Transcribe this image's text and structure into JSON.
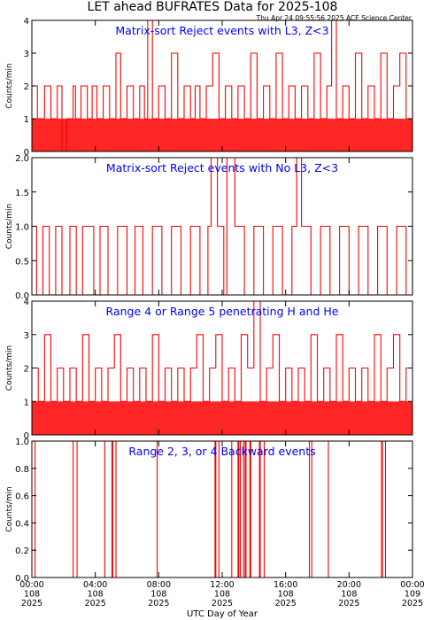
{
  "figure": {
    "title": "LET ahead BUFRATES Data for 2025-108",
    "timestamp": "Thu Apr 24 09:55:56 2025 ACE Science Center",
    "xlabel": "UTC Day of Year",
    "ylabel": "Counts/min",
    "trace_color": "#ff0000",
    "label_color": "#0000ff",
    "x_ticks": [
      {
        "hour": 0,
        "time": "00:00",
        "doy": "108",
        "year": "2025"
      },
      {
        "hour": 4,
        "time": "04:00",
        "doy": "108",
        "year": "2025"
      },
      {
        "hour": 8,
        "time": "08:00",
        "doy": "108",
        "year": "2025"
      },
      {
        "hour": 12,
        "time": "12:00",
        "doy": "108",
        "year": "2025"
      },
      {
        "hour": 16,
        "time": "16:00",
        "doy": "108",
        "year": "2025"
      },
      {
        "hour": 20,
        "time": "20:00",
        "doy": "108",
        "year": "2025"
      },
      {
        "hour": 24,
        "time": "00:00",
        "doy": "109",
        "year": "2025"
      }
    ]
  },
  "chart_data": [
    {
      "type": "line",
      "label": "Matrix-sort Reject events with L3, Z<3",
      "xlim": [
        0,
        24
      ],
      "ylim": [
        0,
        4
      ],
      "yticks": [
        "0",
        "1",
        "2",
        "3",
        "4"
      ],
      "x_hours": [
        0.0,
        0.35,
        0.8,
        1.2,
        1.6,
        1.9,
        2.2,
        2.6,
        2.75,
        3.1,
        3.5,
        3.8,
        4.1,
        4.5,
        4.9,
        5.3,
        5.6,
        6.0,
        6.4,
        6.8,
        7.1,
        7.3,
        7.6,
        8.0,
        8.4,
        8.8,
        9.2,
        9.6,
        10.0,
        10.3,
        10.6,
        11.0,
        11.4,
        11.8,
        12.2,
        12.6,
        13.0,
        13.4,
        13.8,
        14.2,
        14.6,
        15.0,
        15.4,
        15.8,
        16.2,
        16.6,
        17.0,
        17.4,
        17.8,
        18.2,
        18.6,
        18.9,
        19.2,
        19.6,
        20.0,
        20.4,
        20.8,
        21.2,
        21.6,
        22.0,
        22.4,
        22.8,
        23.2,
        23.6,
        24.0
      ],
      "y_values": [
        2,
        1,
        2,
        1,
        2,
        0,
        1,
        2,
        1,
        2,
        1,
        2,
        1,
        2,
        1,
        3,
        1,
        2,
        1,
        2,
        1,
        4,
        1,
        2,
        1,
        3,
        1,
        2,
        1,
        2,
        1,
        2,
        3,
        1,
        2,
        1,
        2,
        1,
        3,
        1,
        2,
        1,
        3,
        1,
        2,
        1,
        2,
        1,
        3,
        1,
        2,
        4,
        1,
        2,
        1,
        3,
        1,
        2,
        1,
        3,
        1,
        2,
        3,
        1,
        2
      ]
    },
    {
      "type": "line",
      "label": "Matrix-sort Reject events with No L3, Z<3",
      "xlim": [
        0,
        24
      ],
      "ylim": [
        0,
        2
      ],
      "yticks": [
        "0.0",
        "0.5",
        "1.0",
        "1.5",
        "2.0"
      ],
      "x_hours": [
        0.0,
        0.3,
        0.7,
        1.1,
        1.5,
        1.9,
        2.4,
        2.8,
        3.2,
        3.9,
        4.3,
        4.8,
        5.4,
        6.0,
        6.5,
        7.0,
        7.6,
        8.2,
        8.8,
        9.4,
        10.0,
        10.6,
        11.1,
        11.3,
        11.7,
        12.1,
        12.3,
        12.8,
        13.4,
        14.0,
        14.6,
        15.2,
        15.8,
        16.4,
        16.7,
        17.0,
        17.6,
        18.2,
        18.8,
        19.4,
        20.0,
        20.6,
        21.2,
        21.8,
        22.4,
        23.0,
        23.6,
        24.0
      ],
      "y_values": [
        1,
        0,
        1,
        0,
        1,
        0,
        1,
        0,
        1,
        0,
        1,
        0,
        1,
        0,
        1,
        0,
        1,
        0,
        1,
        0,
        1,
        0,
        1,
        2,
        1,
        0,
        2,
        1,
        0,
        1,
        0,
        1,
        0,
        1,
        2,
        1,
        0,
        1,
        0,
        1,
        0,
        1,
        0,
        1,
        0,
        1,
        0,
        1
      ]
    },
    {
      "type": "line",
      "label": "Range 4 or Range 5 penetrating H and He",
      "xlim": [
        0,
        24
      ],
      "ylim": [
        0,
        4
      ],
      "yticks": [
        "0",
        "1",
        "2",
        "3",
        "4"
      ],
      "x_hours": [
        0.0,
        0.4,
        0.8,
        1.2,
        1.6,
        2.0,
        2.4,
        2.8,
        3.2,
        3.6,
        4.0,
        4.4,
        4.8,
        5.2,
        5.6,
        6.0,
        6.4,
        6.8,
        7.2,
        7.6,
        8.0,
        8.4,
        8.8,
        9.2,
        9.6,
        10.0,
        10.4,
        10.8,
        11.2,
        11.6,
        12.0,
        12.4,
        12.8,
        13.2,
        13.6,
        14.0,
        14.4,
        14.8,
        15.2,
        15.6,
        16.0,
        16.4,
        16.8,
        17.2,
        17.6,
        18.0,
        18.4,
        18.8,
        19.2,
        19.6,
        20.0,
        20.4,
        20.8,
        21.2,
        21.6,
        22.0,
        22.4,
        22.8,
        23.2,
        23.6,
        24.0
      ],
      "y_values": [
        2,
        1,
        3,
        1,
        2,
        1,
        2,
        1,
        3,
        1,
        2,
        1,
        2,
        3,
        1,
        2,
        1,
        2,
        1,
        3,
        1,
        2,
        1,
        2,
        1,
        2,
        3,
        1,
        2,
        3,
        1,
        2,
        1,
        3,
        2,
        4,
        1,
        2,
        3,
        1,
        2,
        1,
        2,
        1,
        3,
        1,
        2,
        1,
        3,
        1,
        2,
        1,
        2,
        1,
        3,
        1,
        2,
        3,
        1,
        2,
        2
      ]
    },
    {
      "type": "line",
      "label": "Range 2, 3, or 4 Backward events",
      "xlim": [
        0,
        24
      ],
      "ylim": [
        0,
        1
      ],
      "yticks": [
        "0.0",
        "0.2",
        "0.4",
        "0.6",
        "0.8",
        "1.0"
      ],
      "x_hours": [
        0.0,
        0.1,
        0.2,
        2.55,
        2.6,
        2.8,
        2.85,
        4.55,
        4.6,
        5.05,
        5.1,
        5.25,
        5.3,
        7.85,
        7.9,
        11.55,
        11.6,
        11.75,
        11.8,
        12.55,
        12.6,
        13.0,
        13.05,
        13.1,
        13.15,
        13.3,
        13.35,
        13.45,
        13.5,
        13.75,
        13.8,
        14.35,
        14.4,
        14.6,
        14.65,
        17.45,
        17.5,
        17.6,
        17.65,
        18.65,
        18.7,
        22.05,
        22.1,
        22.25,
        22.3,
        24.0
      ],
      "y_values": [
        1,
        1,
        0,
        0,
        1,
        1,
        0,
        0,
        1,
        0,
        1,
        1,
        0,
        0,
        1,
        0,
        1,
        1,
        0,
        0,
        1,
        0,
        1,
        1,
        0,
        0,
        1,
        0,
        1,
        0,
        1,
        0,
        1,
        1,
        0,
        0,
        1,
        1,
        0,
        0,
        1,
        0,
        1,
        1,
        0,
        0
      ]
    }
  ]
}
